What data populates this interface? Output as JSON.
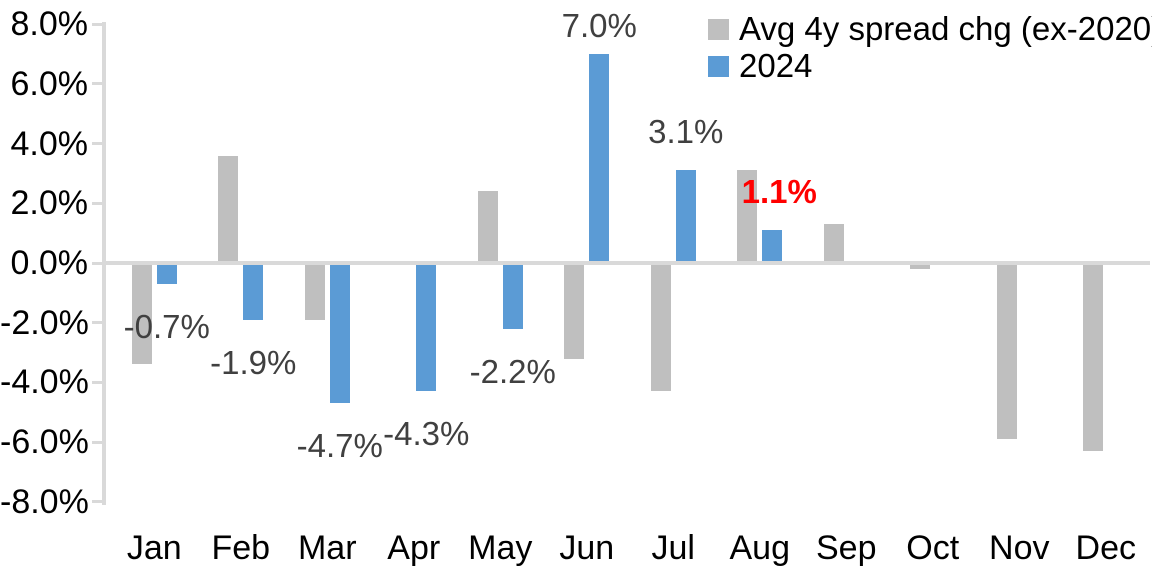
{
  "chart_data": {
    "type": "bar",
    "title": "",
    "xlabel": "",
    "ylabel": "",
    "categories": [
      "Jan",
      "Feb",
      "Mar",
      "Apr",
      "May",
      "Jun",
      "Jul",
      "Aug",
      "Sep",
      "Oct",
      "Nov",
      "Dec"
    ],
    "series": [
      {
        "name": "Avg 4y spread chg (ex-2020)",
        "color": "#BFBFBF",
        "values": [
          -3.4,
          3.6,
          -1.9,
          0.0,
          2.4,
          -3.2,
          -4.3,
          3.1,
          1.3,
          -0.2,
          -5.9,
          -6.3
        ]
      },
      {
        "name": "2024",
        "color": "#5B9BD5",
        "values": [
          -0.7,
          -1.9,
          -4.7,
          -4.3,
          -2.2,
          7.0,
          3.1,
          1.1,
          null,
          null,
          null,
          null
        ]
      }
    ],
    "data_labels": [
      {
        "category_index": 0,
        "text": "-0.7%",
        "color": "#404040",
        "bold": false
      },
      {
        "category_index": 1,
        "text": "-1.9%",
        "color": "#404040",
        "bold": false
      },
      {
        "category_index": 2,
        "text": "-4.7%",
        "color": "#404040",
        "bold": false
      },
      {
        "category_index": 3,
        "text": "-4.3%",
        "color": "#404040",
        "bold": false
      },
      {
        "category_index": 4,
        "text": "-2.2%",
        "color": "#404040",
        "bold": false
      },
      {
        "category_index": 5,
        "text": "7.0%",
        "color": "#404040",
        "bold": false
      },
      {
        "category_index": 6,
        "text": "3.1%",
        "color": "#404040",
        "bold": false
      },
      {
        "category_index": 7,
        "text": "1.1%",
        "color": "#FF0000",
        "bold": true
      }
    ],
    "y_tick_labels": [
      "8.0%",
      "6.0%",
      "4.0%",
      "2.0%",
      "0.0%",
      "-2.0%",
      "-4.0%",
      "-6.0%",
      "-8.0%"
    ],
    "ylim": [
      -8,
      8
    ],
    "y_tick_step": 2,
    "grid": false,
    "legend_position": "top-right"
  },
  "colors": {
    "background": "#FFFFFF",
    "axis_line": "#D9D9D9",
    "axis_tick_label": "#000000",
    "data_label": "#404040",
    "highlight_label": "#FF0000",
    "series_gray": "#BFBFBF",
    "series_blue": "#5B9BD5"
  }
}
